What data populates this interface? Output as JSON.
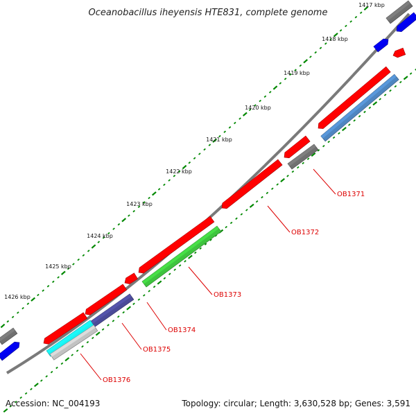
{
  "title": "Oceanobacillus iheyensis HTE831, complete genome",
  "ticks": [
    "1417 kbp",
    "1418 kbp",
    "1419 kbp",
    "1420 kbp",
    "1421 kbp",
    "1422 kbp",
    "1423 kbp",
    "1424 kbp",
    "1425 kbp",
    "1426 kbp"
  ],
  "gene_labels": [
    "OB1371",
    "OB1372",
    "OB1373",
    "OB1374",
    "OB1375",
    "OB1376"
  ],
  "footer": {
    "accession": "Accession: NC_004193",
    "summary": "Topology: circular; Length: 3,630,528 bp; Genes: 3,591"
  },
  "colors": {
    "backbone": "#7a7a7a",
    "cds_red": "#ff0000",
    "gene_gray": "#707070",
    "gene_blue": "#0000ee",
    "steelblue": "#4f86c0",
    "green": "#3ec43e",
    "slate": "#4b4b98",
    "cyan": "#19f2f2",
    "silver": "#c2c2c2",
    "label_red": "#dd0000",
    "dot_green": "#008800"
  }
}
